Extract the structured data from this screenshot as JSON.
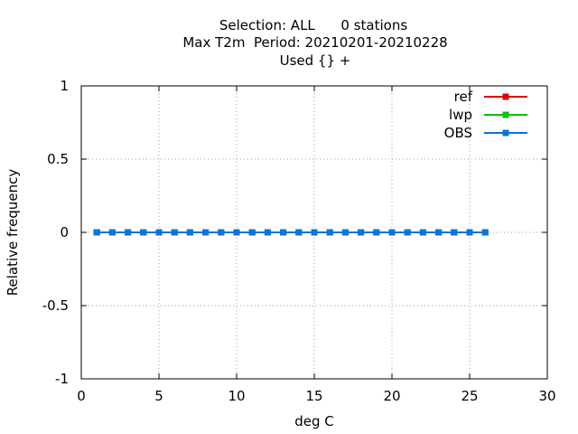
{
  "chart_data": {
    "type": "line",
    "title_lines": [
      "Selection: ALL      0 stations",
      "Max T2m  Period: 20210201-20210228",
      "Used {} +"
    ],
    "xlabel": "deg C",
    "ylabel": "Relative frequency",
    "xlim": [
      0,
      30
    ],
    "ylim": [
      -1,
      1
    ],
    "xticks": [
      0,
      5,
      10,
      15,
      20,
      25,
      30
    ],
    "yticks": [
      -1,
      -0.5,
      0,
      0.5,
      1
    ],
    "xtick_labels": [
      "0",
      "5",
      "10",
      "15",
      "20",
      "25",
      "30"
    ],
    "ytick_labels": [
      "-1",
      "-0.5",
      "0",
      "0.5",
      "1"
    ],
    "grid": true,
    "legend_position": "top-right",
    "x": [
      1,
      2,
      3,
      4,
      5,
      6,
      7,
      8,
      9,
      10,
      11,
      12,
      13,
      14,
      15,
      16,
      17,
      18,
      19,
      20,
      21,
      22,
      23,
      24,
      25,
      26
    ],
    "series": [
      {
        "name": "ref",
        "color": "#e00000",
        "values": [
          0,
          0,
          0,
          0,
          0,
          0,
          0,
          0,
          0,
          0,
          0,
          0,
          0,
          0,
          0,
          0,
          0,
          0,
          0,
          0,
          0,
          0,
          0,
          0,
          0,
          0
        ]
      },
      {
        "name": "lwp",
        "color": "#00c000",
        "values": [
          0,
          0,
          0,
          0,
          0,
          0,
          0,
          0,
          0,
          0,
          0,
          0,
          0,
          0,
          0,
          0,
          0,
          0,
          0,
          0,
          0,
          0,
          0,
          0,
          0,
          0
        ]
      },
      {
        "name": "OBS",
        "color": "#0a74d8",
        "values": [
          0,
          0,
          0,
          0,
          0,
          0,
          0,
          0,
          0,
          0,
          0,
          0,
          0,
          0,
          0,
          0,
          0,
          0,
          0,
          0,
          0,
          0,
          0,
          0,
          0,
          0
        ]
      }
    ]
  }
}
